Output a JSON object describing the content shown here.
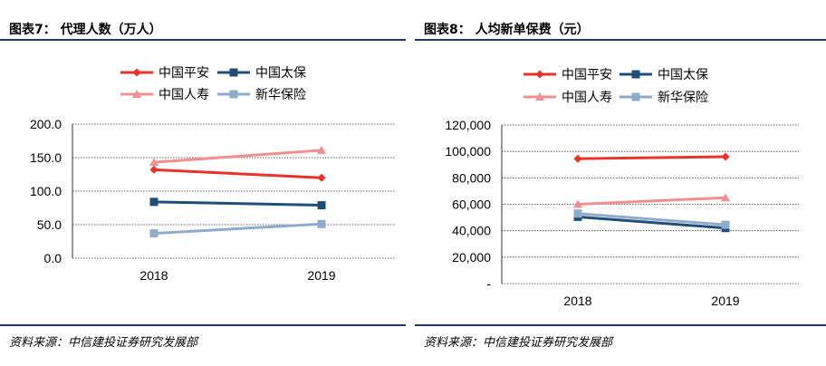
{
  "chart_data": [
    {
      "type": "line",
      "title": "图表7： 代理人数（万人）",
      "categories": [
        "2018",
        "2019"
      ],
      "series": [
        {
          "name": "中国平安",
          "values": [
            132,
            120
          ],
          "color": "#e8322a",
          "marker": "diamond"
        },
        {
          "name": "中国太保",
          "values": [
            84,
            79
          ],
          "color": "#1f4e79",
          "marker": "square"
        },
        {
          "name": "中国人寿",
          "values": [
            143,
            161
          ],
          "color": "#f09090",
          "marker": "triangle"
        },
        {
          "name": "新华保险",
          "values": [
            37,
            51
          ],
          "color": "#8eabc9",
          "marker": "square"
        }
      ],
      "yticks": [
        "200.0",
        "150.0",
        "100.0",
        "50.0",
        "0.0"
      ],
      "ylim": [
        0,
        200
      ],
      "grid": true,
      "legend": "top",
      "source": "资料来源：中信建投证券研究发展部"
    },
    {
      "type": "line",
      "title": "图表8： 人均新单保费（元）",
      "categories": [
        "2018",
        "2019"
      ],
      "series": [
        {
          "name": "中国平安",
          "values": [
            94500,
            96000
          ],
          "color": "#e8322a",
          "marker": "diamond"
        },
        {
          "name": "中国太保",
          "values": [
            50500,
            42000
          ],
          "color": "#1f4e79",
          "marker": "square"
        },
        {
          "name": "中国人寿",
          "values": [
            60000,
            65000
          ],
          "color": "#f09090",
          "marker": "triangle"
        },
        {
          "name": "新华保险",
          "values": [
            53000,
            44500
          ],
          "color": "#8eabc9",
          "marker": "square"
        }
      ],
      "yticks": [
        "120,000",
        "100,000",
        "80,000",
        "60,000",
        "40,000",
        "20,000",
        "-"
      ],
      "ylim": [
        0,
        120000
      ],
      "grid": true,
      "legend": "top",
      "source": "资料来源：中信建投证券研究发展部"
    }
  ]
}
